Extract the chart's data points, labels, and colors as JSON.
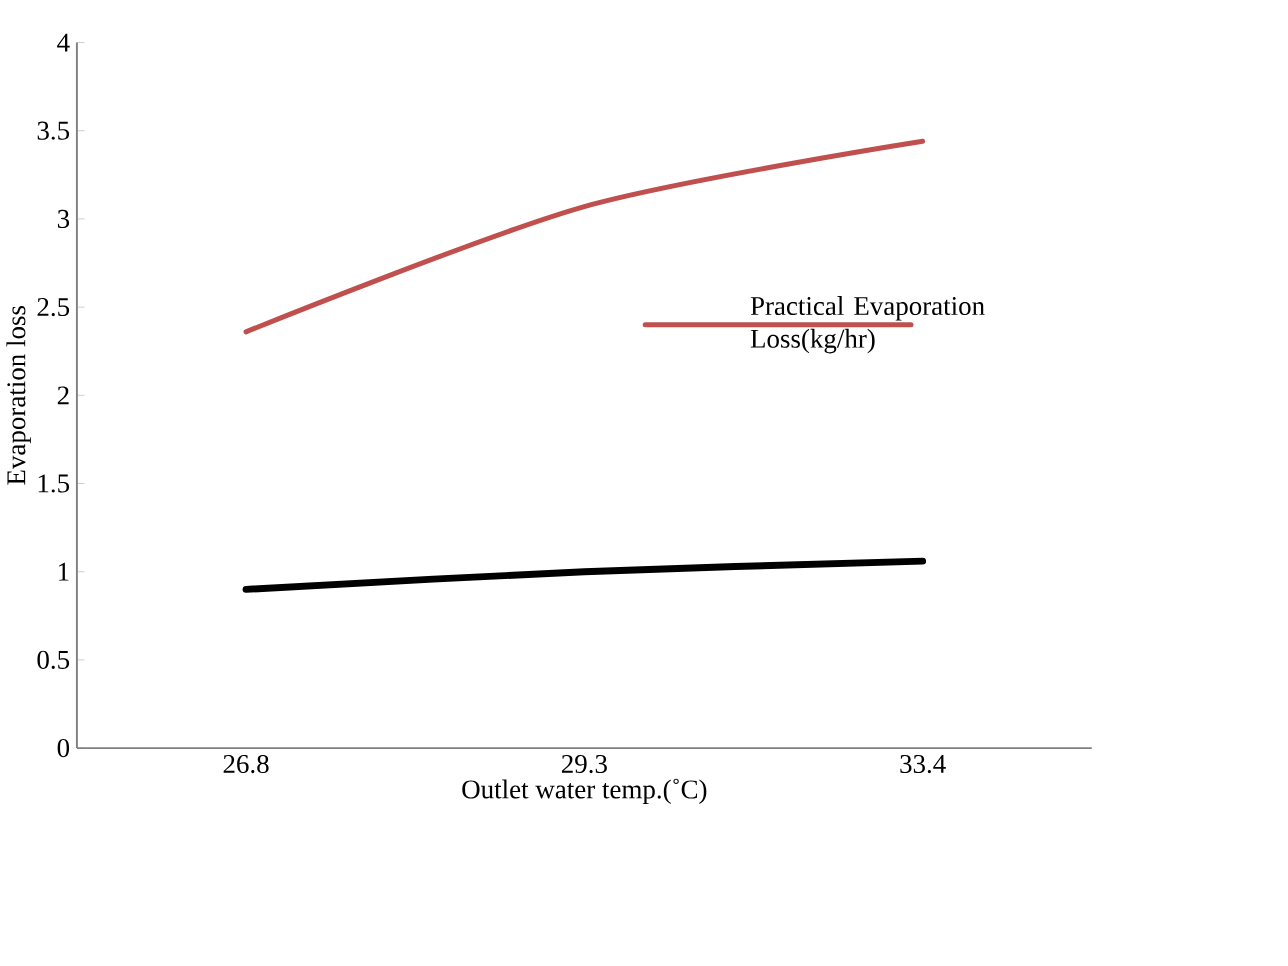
{
  "chart_data": {
    "type": "line",
    "xlabel": "Outlet water temp.(˚C)",
    "ylabel": "Evaporation loss",
    "categories": [
      "26.8",
      "29.3",
      "33.4"
    ],
    "series": [
      {
        "name": "Practical Evaporation Loss(kg/hr)",
        "color": "#c0504d",
        "values": [
          2.36,
          3.07,
          3.44
        ]
      },
      {
        "color": "#000000",
        "values": [
          0.9,
          1.0,
          1.06
        ]
      }
    ],
    "ylim": [
      0,
      4
    ],
    "yticks": [
      0,
      0.5,
      1,
      1.5,
      2,
      2.5,
      3,
      3.5,
      4
    ],
    "legend": "right",
    "grid": false,
    "marker": "none",
    "line_style": "solid"
  }
}
